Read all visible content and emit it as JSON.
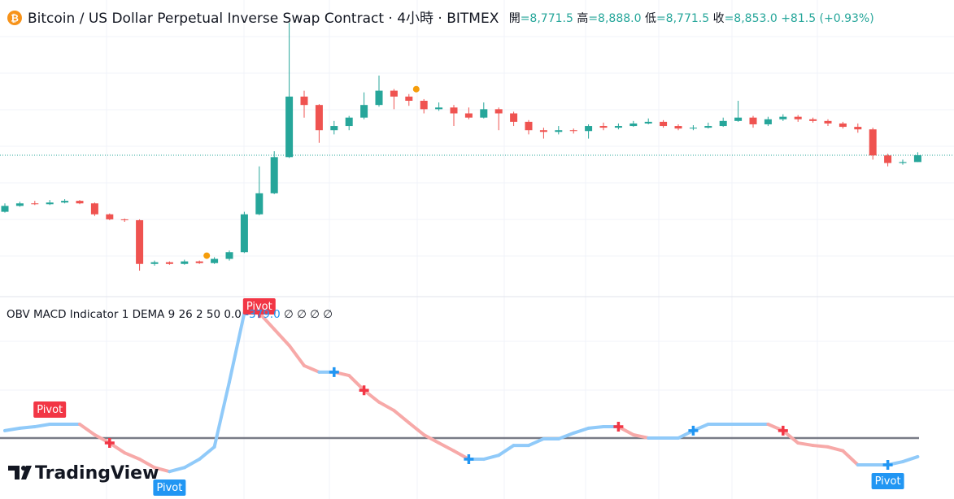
{
  "chart_data": [
    {
      "type": "candlestick",
      "title": "Bitcoin / US Dollar Perpetual Inverse Swap Contract · 4小時 · BITMEX",
      "ohlc_labels": [
        {
          "name": "開",
          "text": "=8,771.5"
        },
        {
          "name": "高",
          "text": "=8,888.0"
        },
        {
          "name": "低",
          "text": "=8,771.5"
        },
        {
          "name": "收",
          "text": "=8,853.0"
        }
      ],
      "change": "+81.5 (+0.93%)",
      "up_color": "#26a69a",
      "down_color": "#ef5350",
      "ylim": [
        7200,
        10650
      ],
      "open": [
        8180,
        8250,
        8280,
        8270,
        8290,
        8310,
        8280,
        8150,
        8090,
        8080,
        7560,
        7580,
        7560,
        7590,
        7570,
        7620,
        7700,
        8150,
        8400,
        8830,
        9550,
        9450,
        9150,
        9200,
        9300,
        9450,
        9620,
        9550,
        9500,
        9400,
        9420,
        9350,
        9300,
        9400,
        9350,
        9250,
        9150,
        9130,
        9150,
        9140,
        9200,
        9180,
        9200,
        9230,
        9250,
        9200,
        9170,
        9180,
        9200,
        9260,
        9300,
        9220,
        9280,
        9310,
        9280,
        9260,
        9230,
        9190,
        9160,
        8850,
        8760,
        8771.5
      ],
      "high": [
        8280,
        8300,
        8310,
        8320,
        8330,
        8320,
        8290,
        8160,
        8100,
        8090,
        7600,
        7590,
        7610,
        7600,
        7640,
        7720,
        8180,
        8720,
        8900,
        10430,
        9620,
        9460,
        9260,
        9320,
        9600,
        9800,
        9640,
        9580,
        9520,
        9480,
        9450,
        9420,
        9480,
        9420,
        9370,
        9270,
        9180,
        9200,
        9170,
        9220,
        9240,
        9230,
        9260,
        9290,
        9270,
        9220,
        9210,
        9240,
        9300,
        9500,
        9320,
        9310,
        9340,
        9330,
        9300,
        9280,
        9250,
        9230,
        9180,
        8870,
        8800,
        8888
      ],
      "low": [
        8170,
        8240,
        8260,
        8260,
        8280,
        8270,
        8130,
        8080,
        8060,
        7480,
        7540,
        7550,
        7550,
        7560,
        7560,
        7600,
        7690,
        8140,
        8390,
        8820,
        9300,
        9000,
        9100,
        9150,
        9280,
        9430,
        9400,
        9440,
        9350,
        9380,
        9200,
        9280,
        9290,
        9150,
        9200,
        9100,
        9050,
        9100,
        9110,
        9050,
        9150,
        9160,
        9190,
        9220,
        9180,
        9150,
        9150,
        9170,
        9190,
        9250,
        9180,
        9200,
        9260,
        9250,
        9240,
        9200,
        9170,
        9120,
        8800,
        8720,
        8740,
        8771.5
      ],
      "close": [
        8250,
        8280,
        8270,
        8290,
        8310,
        8280,
        8150,
        8090,
        8080,
        7560,
        7580,
        7560,
        7590,
        7570,
        7620,
        7700,
        8150,
        8400,
        8830,
        9550,
        9450,
        9150,
        9200,
        9300,
        9450,
        9620,
        9550,
        9500,
        9400,
        9420,
        9350,
        9300,
        9400,
        9350,
        9250,
        9150,
        9130,
        9150,
        9140,
        9200,
        9180,
        9200,
        9230,
        9250,
        9200,
        9170,
        9180,
        9200,
        9260,
        9300,
        9220,
        9280,
        9310,
        9280,
        9260,
        9230,
        9190,
        9160,
        8850,
        8760,
        8771.5,
        8853
      ],
      "dot_color": "#f59d0b",
      "dots": [
        13,
        27
      ]
    },
    {
      "type": "line",
      "title": "OBV MACD Indicator 1 DEMA 9 26 2 50",
      "legend_values": [
        {
          "value": 0,
          "label": "0.0",
          "color": "#131722"
        },
        {
          "value": -379,
          "label": "-379.0",
          "color": "#2196f3"
        }
      ],
      "empty_marks": [
        "∅",
        "∅",
        "∅",
        "∅"
      ],
      "ylim": [
        -1090,
        2790
      ],
      "zero_color": "#787b86",
      "series": [
        {
          "name": "OBV",
          "up_color": "#90caf9",
          "down_color": "#f7a9a8",
          "values": [
            150,
            200,
            230,
            280,
            280,
            280,
            66,
            -100,
            -300,
            -430,
            -600,
            -680,
            -600,
            -430,
            -180,
            1140,
            2540,
            2540,
            2210,
            1880,
            1470,
            1340,
            1340,
            1270,
            970,
            730,
            560,
            310,
            66,
            -100,
            -260,
            -430,
            -430,
            -350,
            -150,
            -150,
            -16,
            -16,
            100,
            200,
            230,
            230,
            66,
            0,
            0,
            0,
            150,
            280,
            280,
            280,
            280,
            280,
            150,
            -100,
            -150,
            -180,
            -260,
            -545,
            -545,
            -545,
            -480,
            -379
          ]
        }
      ],
      "signals": [
        {
          "index": 7,
          "color": "#f23645"
        },
        {
          "index": 17,
          "color": "#f23645"
        },
        {
          "index": 22,
          "color": "#2196f3"
        },
        {
          "index": 24,
          "color": "#f23645"
        },
        {
          "index": 31,
          "color": "#2196f3"
        },
        {
          "index": 41,
          "color": "#f23645"
        },
        {
          "index": 46,
          "color": "#2196f3"
        },
        {
          "index": 52,
          "color": "#f23645"
        },
        {
          "index": 59,
          "color": "#2196f3"
        }
      ],
      "pivots": [
        {
          "index": 3,
          "text": "Pivot",
          "color": "#f23645",
          "side": "above"
        },
        {
          "index": 11,
          "text": "Pivot",
          "color": "#2196f3",
          "side": "below"
        },
        {
          "index": 17,
          "text": "Pivot",
          "color": "#f23645",
          "side": "above"
        },
        {
          "index": 59,
          "text": "Pivot",
          "color": "#2196f3",
          "side": "below"
        }
      ],
      "logo": "TradingView"
    }
  ]
}
